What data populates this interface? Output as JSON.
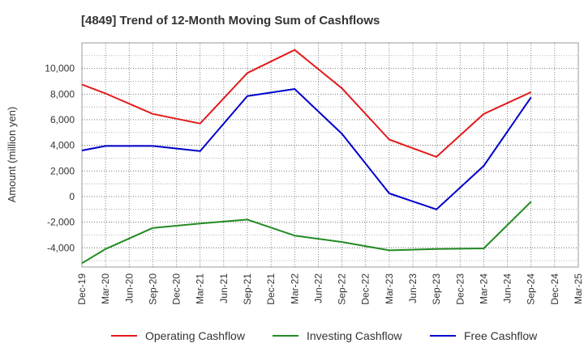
{
  "chart_data": {
    "type": "line",
    "title": "[4849]  Trend of 12-Month Moving Sum of Cashflows",
    "xlabel": "",
    "ylabel": "Amount (million yen)",
    "ylim": [
      -5500,
      12000
    ],
    "yticks": [
      -4000,
      -2000,
      0,
      2000,
      4000,
      6000,
      8000,
      10000
    ],
    "ytick_labels": [
      "-4,000",
      "-2,000",
      "0",
      "2,000",
      "4,000",
      "6,000",
      "8,000",
      "10,000"
    ],
    "categories": [
      "Dec-19",
      "Mar-20",
      "Jun-20",
      "Sep-20",
      "Dec-20",
      "Mar-21",
      "Jun-21",
      "Sep-21",
      "Dec-21",
      "Mar-22",
      "Jun-22",
      "Sep-22",
      "Dec-22",
      "Mar-23",
      "Jun-23",
      "Sep-23",
      "Dec-23",
      "Mar-24",
      "Jun-24",
      "Sep-24",
      "Dec-24",
      "Mar-25"
    ],
    "grid": true,
    "legend_position": "bottom",
    "series": [
      {
        "name": "Operating Cashflow",
        "color": "#e31a1c",
        "points": [
          [
            "Dec-19",
            8750
          ],
          [
            "Mar-20",
            8050
          ],
          [
            "Sep-20",
            6450
          ],
          [
            "Mar-21",
            5700
          ],
          [
            "Sep-21",
            9650
          ],
          [
            "Mar-22",
            11450
          ],
          [
            "Sep-22",
            8450
          ],
          [
            "Mar-23",
            4450
          ],
          [
            "Sep-23",
            3100
          ],
          [
            "Mar-24",
            6450
          ],
          [
            "Sep-24",
            8150
          ]
        ]
      },
      {
        "name": "Investing Cashflow",
        "color": "#228b22",
        "points": [
          [
            "Dec-19",
            -5200
          ],
          [
            "Mar-20",
            -4100
          ],
          [
            "Sep-20",
            -2450
          ],
          [
            "Mar-21",
            -2100
          ],
          [
            "Sep-21",
            -1800
          ],
          [
            "Mar-22",
            -3050
          ],
          [
            "Sep-22",
            -3550
          ],
          [
            "Mar-23",
            -4200
          ],
          [
            "Sep-23",
            -4100
          ],
          [
            "Mar-24",
            -4050
          ],
          [
            "Sep-24",
            -400
          ]
        ]
      },
      {
        "name": "Free Cashflow",
        "color": "#0000cc",
        "points": [
          [
            "Dec-19",
            3600
          ],
          [
            "Mar-20",
            3950
          ],
          [
            "Sep-20",
            3950
          ],
          [
            "Mar-21",
            3550
          ],
          [
            "Sep-21",
            7850
          ],
          [
            "Mar-22",
            8400
          ],
          [
            "Sep-22",
            4900
          ],
          [
            "Mar-23",
            250
          ],
          [
            "Sep-23",
            -1000
          ],
          [
            "Mar-24",
            2400
          ],
          [
            "Sep-24",
            7750
          ]
        ]
      }
    ]
  }
}
